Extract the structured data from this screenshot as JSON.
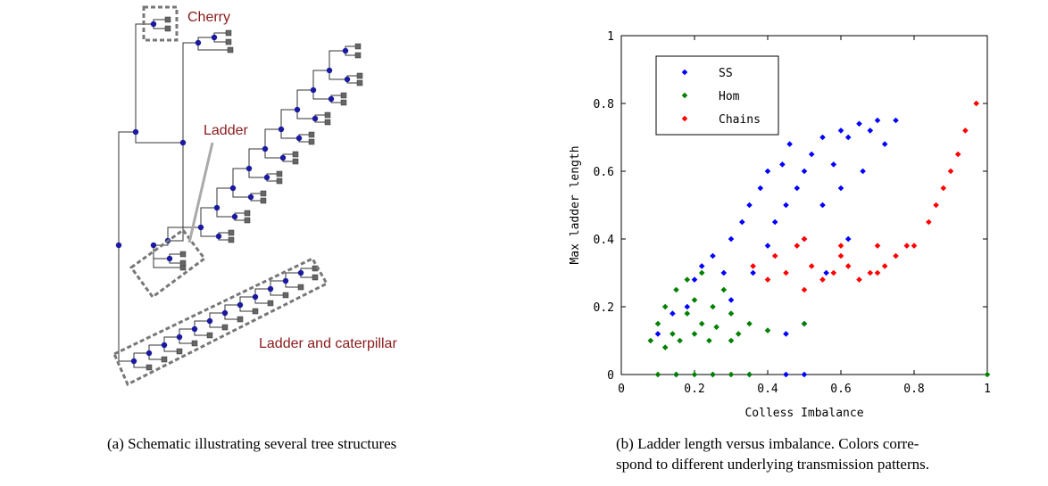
{
  "figure": {
    "panel_a": {
      "labels": {
        "cherry": "Cherry",
        "ladder": "Ladder",
        "caterpillar": "Ladder and caterpillar"
      },
      "caption": "(a) Schematic illustrating several tree structures"
    },
    "panel_b": {
      "caption_lines": [
        "(b) Ladder length versus imbalance. Colors corre-",
        "spond to different underlying transmission patterns."
      ]
    }
  },
  "chart_data": {
    "type": "scatter",
    "xlabel": "Colless Imbalance",
    "ylabel": "Max ladder length",
    "xlim": [
      0,
      1
    ],
    "ylim": [
      0,
      1
    ],
    "xticks": [
      0,
      0.2,
      0.4,
      0.6,
      0.8,
      1
    ],
    "yticks": [
      0,
      0.2,
      0.4,
      0.6,
      0.8,
      1
    ],
    "legend": "upper left",
    "series": [
      {
        "name": "SS",
        "color": "#0000ff",
        "x": [
          0.1,
          0.14,
          0.18,
          0.2,
          0.22,
          0.25,
          0.28,
          0.3,
          0.3,
          0.33,
          0.35,
          0.36,
          0.38,
          0.4,
          0.4,
          0.42,
          0.44,
          0.45,
          0.46,
          0.48,
          0.5,
          0.5,
          0.52,
          0.55,
          0.55,
          0.58,
          0.6,
          0.6,
          0.62,
          0.65,
          0.66,
          0.68,
          0.7,
          0.72,
          0.75,
          0.56,
          0.62,
          0.5,
          0.45,
          0.15,
          0.25,
          0.35,
          0.45,
          0.5
        ],
        "y": [
          0.12,
          0.18,
          0.2,
          0.28,
          0.32,
          0.35,
          0.3,
          0.4,
          0.22,
          0.45,
          0.5,
          0.3,
          0.55,
          0.6,
          0.38,
          0.45,
          0.62,
          0.5,
          0.68,
          0.55,
          0.6,
          0.4,
          0.65,
          0.7,
          0.5,
          0.62,
          0.72,
          0.55,
          0.7,
          0.74,
          0.6,
          0.72,
          0.75,
          0.68,
          0.75,
          0.3,
          0.4,
          0.15,
          0.12,
          0,
          0,
          0,
          0,
          0
        ]
      },
      {
        "name": "Chains",
        "color": "#ff0000",
        "x": [
          0.36,
          0.4,
          0.42,
          0.45,
          0.48,
          0.5,
          0.52,
          0.55,
          0.58,
          0.6,
          0.62,
          0.65,
          0.68,
          0.7,
          0.72,
          0.75,
          0.78,
          0.8,
          0.5,
          0.6,
          0.7,
          0.84,
          0.86,
          0.88,
          0.9,
          0.92,
          0.94,
          0.97
        ],
        "y": [
          0.32,
          0.28,
          0.35,
          0.3,
          0.38,
          0.25,
          0.32,
          0.28,
          0.3,
          0.35,
          0.32,
          0.28,
          0.3,
          0.38,
          0.32,
          0.35,
          0.38,
          0.38,
          0.4,
          0.38,
          0.3,
          0.45,
          0.5,
          0.55,
          0.6,
          0.65,
          0.72,
          0.8
        ]
      },
      {
        "name": "Hom",
        "color": "#008000",
        "x": [
          0.08,
          0.1,
          0.12,
          0.12,
          0.14,
          0.15,
          0.16,
          0.18,
          0.18,
          0.2,
          0.2,
          0.22,
          0.22,
          0.24,
          0.25,
          0.26,
          0.28,
          0.3,
          0.3,
          0.32,
          0.35,
          0.4,
          0.5,
          0.1,
          0.15,
          0.2,
          0.25,
          0.3,
          0.35,
          1.0
        ],
        "y": [
          0.1,
          0.15,
          0.08,
          0.2,
          0.12,
          0.25,
          0.1,
          0.18,
          0.28,
          0.12,
          0.22,
          0.15,
          0.3,
          0.1,
          0.2,
          0.14,
          0.25,
          0.1,
          0.18,
          0.12,
          0.15,
          0.13,
          0.15,
          0,
          0,
          0,
          0,
          0,
          0,
          0
        ]
      }
    ],
    "legend_order": [
      "SS",
      "Hom",
      "Chains"
    ]
  }
}
